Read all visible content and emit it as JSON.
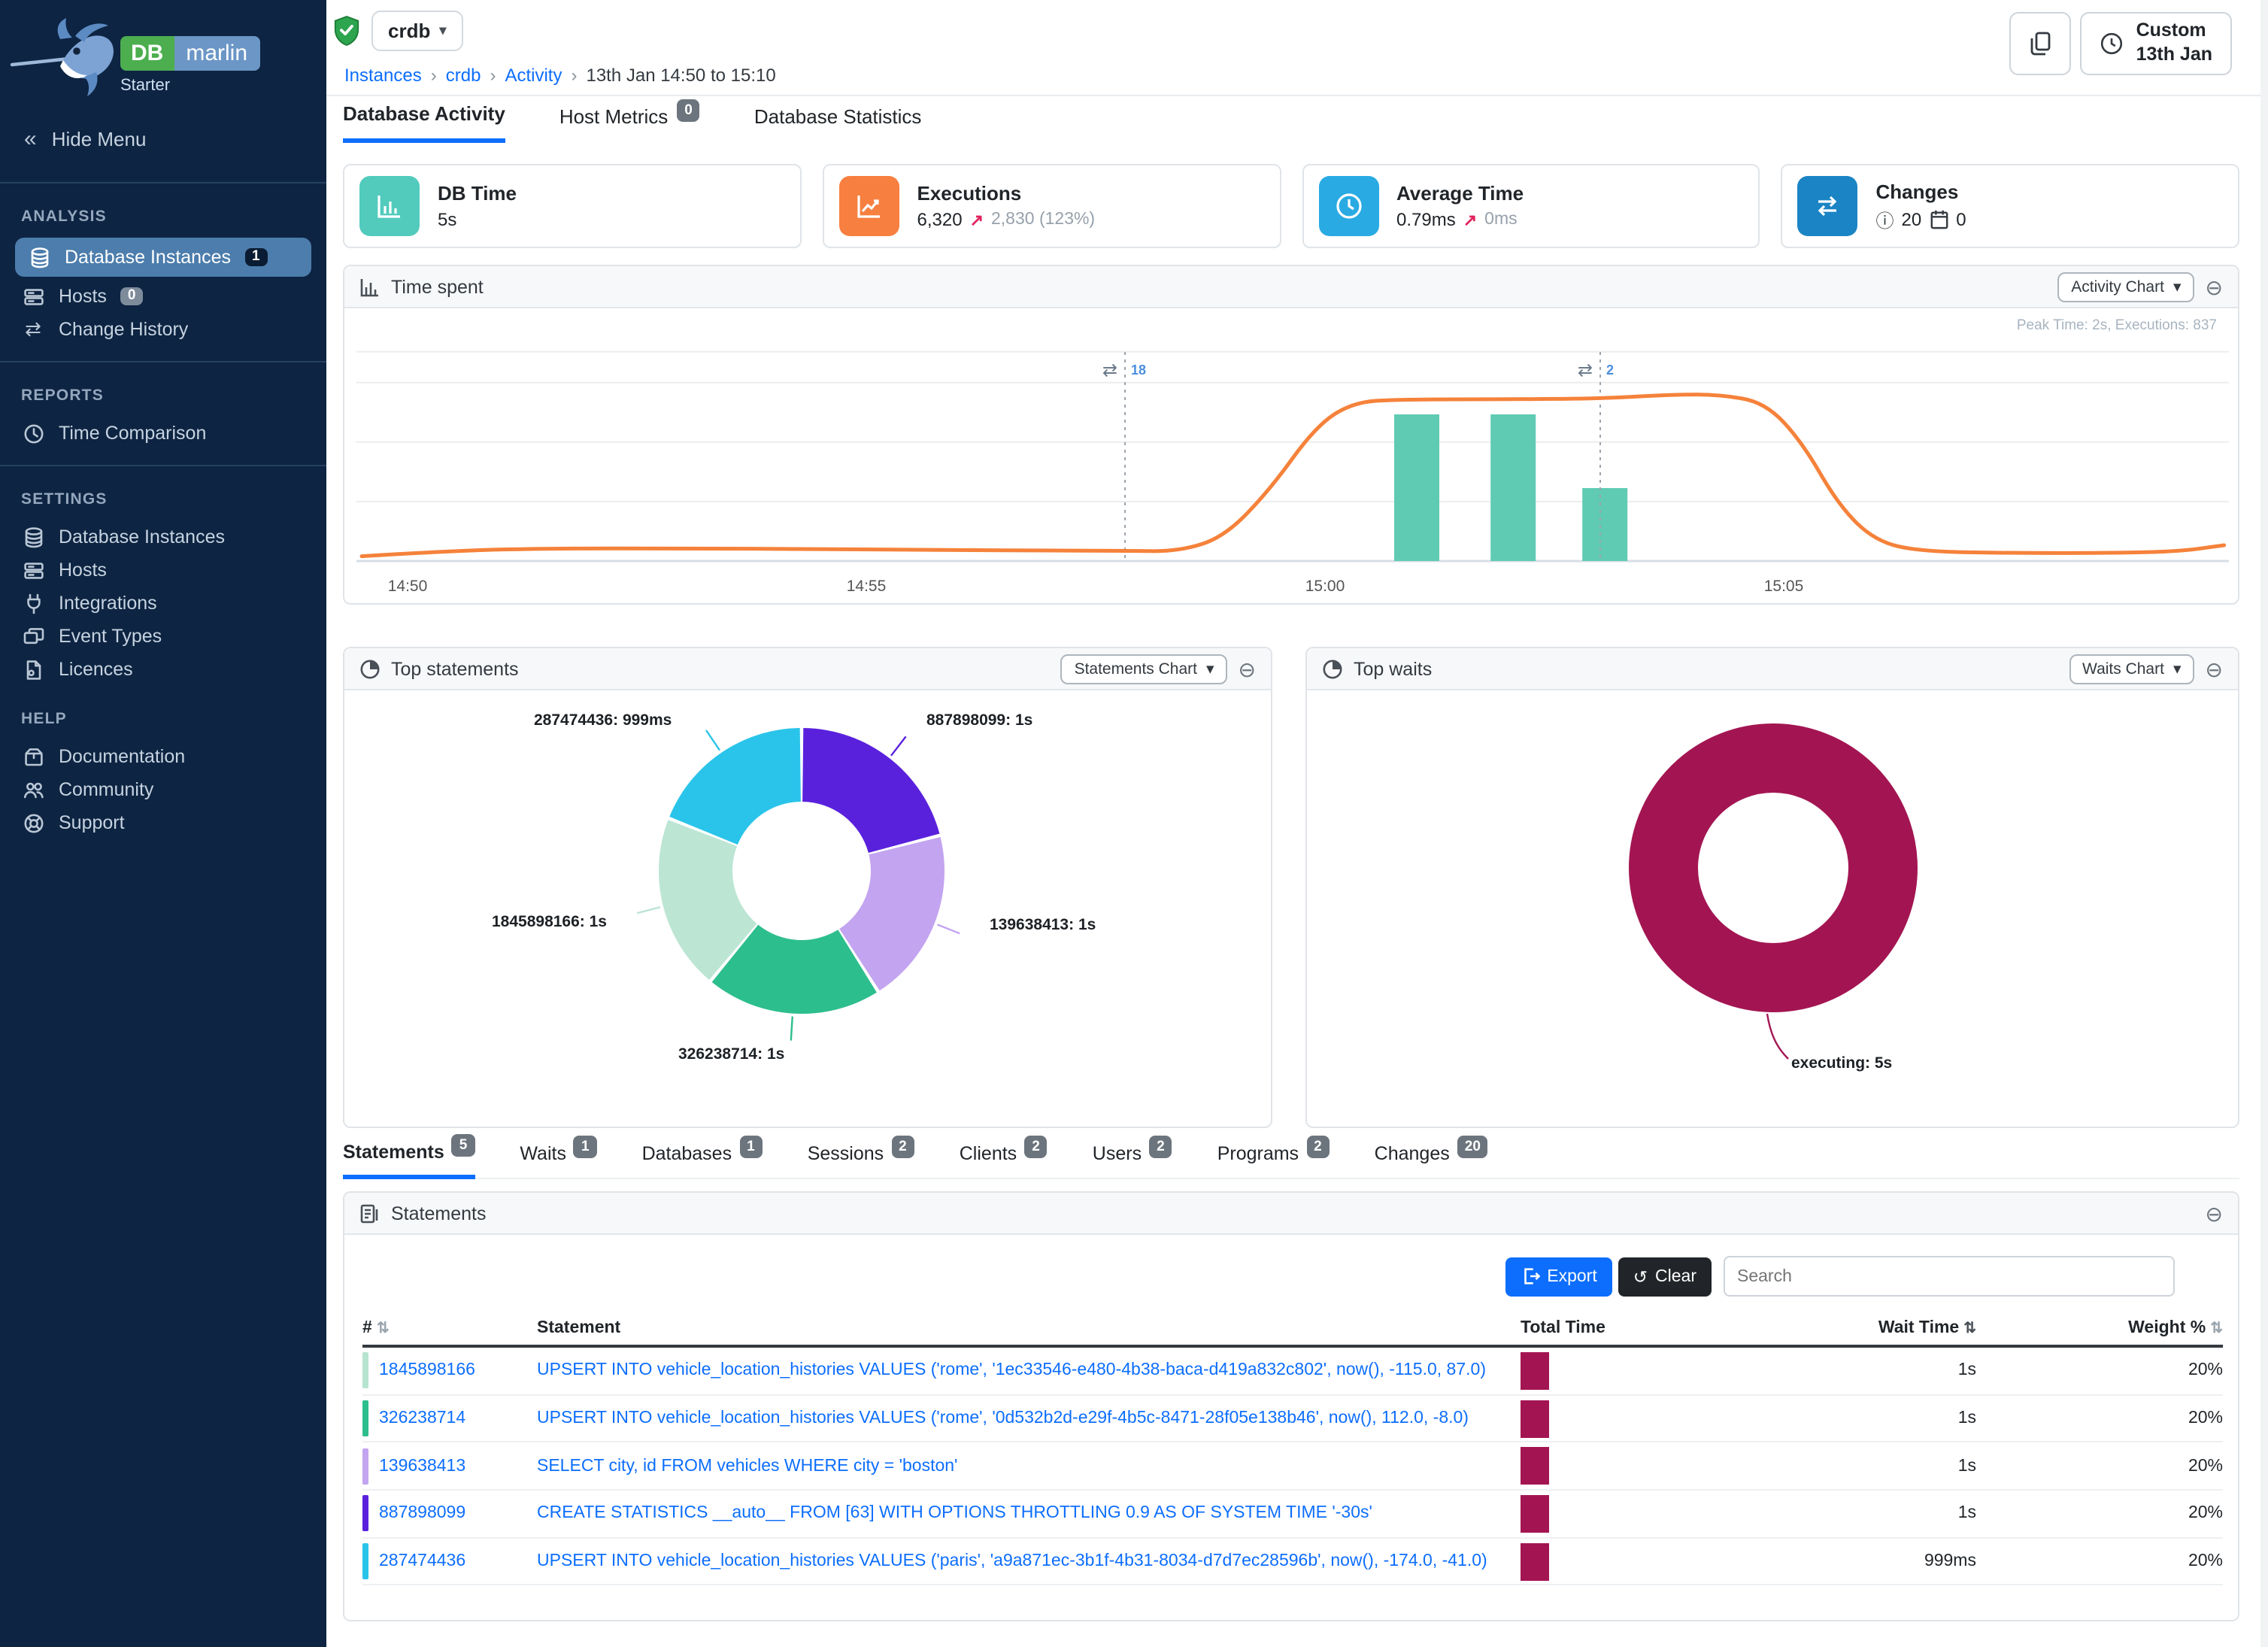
{
  "app": {
    "brand_db": "DB",
    "brand_marlin": "marlin",
    "edition": "Starter"
  },
  "icons": {
    "collapse": "⊖",
    "caret": "▾",
    "crumb_sep": "›",
    "sort": "⇅",
    "trend_up": "↗",
    "chevrons_left": "«",
    "info": "ⓘ",
    "swap": "⇄"
  },
  "sidebar": {
    "hide_menu": "Hide Menu",
    "sections": [
      {
        "title": "ANALYSIS",
        "items": [
          {
            "label": "Database Instances",
            "badge": "1"
          },
          {
            "label": "Hosts",
            "badge": "0"
          },
          {
            "label": "Change History",
            "badge": ""
          }
        ]
      },
      {
        "title": "REPORTS",
        "items": [
          {
            "label": "Time Comparison",
            "badge": ""
          }
        ]
      },
      {
        "title": "SETTINGS",
        "items": [
          {
            "label": "Database Instances",
            "badge": ""
          },
          {
            "label": "Hosts",
            "badge": ""
          },
          {
            "label": "Integrations",
            "badge": ""
          },
          {
            "label": "Event Types",
            "badge": ""
          },
          {
            "label": "Licences",
            "badge": ""
          }
        ]
      },
      {
        "title": "HELP",
        "items": [
          {
            "label": "Documentation",
            "badge": ""
          },
          {
            "label": "Community",
            "badge": ""
          },
          {
            "label": "Support",
            "badge": ""
          }
        ]
      }
    ]
  },
  "header": {
    "instance": "crdb",
    "breadcrumb_links": [
      "Instances",
      "crdb",
      "Activity"
    ],
    "breadcrumb_current": "13th Jan 14:50 to 15:10",
    "time_button_line1": "Custom",
    "time_button_line2": "13th Jan"
  },
  "main_tabs": [
    {
      "label": "Database Activity",
      "badge": ""
    },
    {
      "label": "Host Metrics",
      "badge": "0"
    },
    {
      "label": "Database Statistics",
      "badge": ""
    }
  ],
  "cards": [
    {
      "title": "DB Time",
      "value": "5s",
      "accent": "#52cbbd"
    },
    {
      "title": "Executions",
      "value": "6,320",
      "delta": "2,830 (123%)",
      "accent": "#f77f3f"
    },
    {
      "title": "Average Time",
      "value": "0.79ms",
      "delta": "0ms",
      "accent": "#29aae3"
    },
    {
      "title": "Changes",
      "info_count": "20",
      "event_count": "0",
      "accent": "#1b84c4"
    }
  ],
  "panels": {
    "time_spent": {
      "title": "Time spent",
      "selector": "Activity Chart",
      "note": "Peak Time: 2s, Executions: 837"
    },
    "top_statements": {
      "title": "Top statements",
      "selector": "Statements Chart"
    },
    "top_waits": {
      "title": "Top waits",
      "selector": "Waits Chart"
    },
    "statements": {
      "title": "Statements",
      "export_label": "Export",
      "clear_label": "Clear",
      "search_placeholder": "Search"
    }
  },
  "detail_tabs": [
    {
      "label": "Statements",
      "badge": "5"
    },
    {
      "label": "Waits",
      "badge": "1"
    },
    {
      "label": "Databases",
      "badge": "1"
    },
    {
      "label": "Sessions",
      "badge": "2"
    },
    {
      "label": "Clients",
      "badge": "2"
    },
    {
      "label": "Users",
      "badge": "2"
    },
    {
      "label": "Programs",
      "badge": "2"
    },
    {
      "label": "Changes",
      "badge": "20"
    }
  ],
  "chart_data": [
    {
      "id": "time_spent",
      "type": "line",
      "title": "Time spent",
      "x_ticks": [
        "14:50",
        "14:55",
        "15:00",
        "15:05"
      ],
      "x_tick_minutes": [
        0,
        5,
        10,
        15
      ],
      "ylim_seconds": [
        0,
        2.75
      ],
      "gridlines_seconds": [
        0.75,
        1.5,
        2.25,
        2.64
      ],
      "line_color": "#f5823b",
      "bar_color": "#5fcbb2",
      "series_name": "DB Time (s)",
      "line_points": [
        [
          -0.5,
          0.06
        ],
        [
          0.5,
          0.13
        ],
        [
          1.5,
          0.16
        ],
        [
          3,
          0.16
        ],
        [
          4.5,
          0.15
        ],
        [
          6,
          0.14
        ],
        [
          7,
          0.13
        ],
        [
          7.8,
          0.13
        ],
        [
          8.4,
          0.12
        ],
        [
          8.9,
          0.3
        ],
        [
          9.4,
          0.9
        ],
        [
          9.9,
          1.7
        ],
        [
          10.3,
          2.0
        ],
        [
          10.8,
          2.04
        ],
        [
          12,
          2.04
        ],
        [
          13,
          2.05
        ],
        [
          13.8,
          2.1
        ],
        [
          14.3,
          2.1
        ],
        [
          14.8,
          2.0
        ],
        [
          15.2,
          1.5
        ],
        [
          15.6,
          0.7
        ],
        [
          16,
          0.25
        ],
        [
          16.5,
          0.12
        ],
        [
          17.5,
          0.1
        ],
        [
          18.5,
          0.1
        ],
        [
          19.3,
          0.12
        ],
        [
          19.8,
          0.2
        ]
      ],
      "bars": [
        {
          "x": 11.0,
          "value": 1.85
        },
        {
          "x": 12.05,
          "value": 1.85
        },
        {
          "x": 13.05,
          "value": 0.92
        }
      ],
      "change_markers": [
        {
          "x": 7.82,
          "label": "18"
        },
        {
          "x": 13.0,
          "label": "2"
        }
      ],
      "note": "Peak Time: 2s, Executions: 837"
    },
    {
      "id": "top_statements",
      "type": "donut",
      "title": "Top statements",
      "slices": [
        {
          "name": "887898099",
          "time": "1s",
          "callout": "887898099: 1s",
          "pct": 21,
          "color": "#5a21dd"
        },
        {
          "name": "139638413",
          "time": "1s",
          "callout": "139638413: 1s",
          "pct": 20,
          "color": "#c3a4f0"
        },
        {
          "name": "326238714",
          "time": "1s",
          "callout": "326238714: 1s",
          "pct": 20,
          "color": "#2dbe8d"
        },
        {
          "name": "1845898166",
          "time": "1s",
          "callout": "1845898166: 1s",
          "pct": 20,
          "color": "#bce5d4"
        },
        {
          "name": "287474436",
          "time": "999ms",
          "callout": "287474436: 999ms",
          "pct": 19,
          "color": "#2ac4ea"
        }
      ]
    },
    {
      "id": "top_waits",
      "type": "donut",
      "title": "Top waits",
      "slices": [
        {
          "name": "executing",
          "time": "5s",
          "callout": "executing: 5s",
          "pct": 100,
          "color": "#a31552"
        }
      ]
    }
  ],
  "statements_table": {
    "columns": [
      "#",
      "Statement",
      "Total Time",
      "Wait Time",
      "Weight %"
    ],
    "rows": [
      {
        "id": "1845898166",
        "statement": "UPSERT INTO vehicle_location_histories VALUES ('rome', '1ec33546-e480-4b38-baca-d419a832c802', now(), -115.0, 87.0)",
        "wait_time": "1s",
        "weight": "20%",
        "chip_color": "#b7e4d0"
      },
      {
        "id": "326238714",
        "statement": "UPSERT INTO vehicle_location_histories VALUES ('rome', '0d532b2d-e29f-4b5c-8471-28f05e138b46', now(), 112.0, -8.0)",
        "wait_time": "1s",
        "weight": "20%",
        "chip_color": "#2dbe8d"
      },
      {
        "id": "139638413",
        "statement": "SELECT city, id FROM vehicles WHERE city = 'boston'",
        "wait_time": "1s",
        "weight": "20%",
        "chip_color": "#c3a4f0"
      },
      {
        "id": "887898099",
        "statement": "CREATE STATISTICS __auto__ FROM [63] WITH OPTIONS THROTTLING 0.9 AS OF SYSTEM TIME '-30s'",
        "wait_time": "1s",
        "weight": "20%",
        "chip_color": "#5a21dd"
      },
      {
        "id": "287474436",
        "statement": "UPSERT INTO vehicle_location_histories VALUES ('paris', 'a9a871ec-3b1f-4b31-8034-d7d7ec28596b', now(), -174.0, -41.0)",
        "wait_time": "999ms",
        "weight": "20%",
        "chip_color": "#2ac4ea"
      }
    ]
  }
}
